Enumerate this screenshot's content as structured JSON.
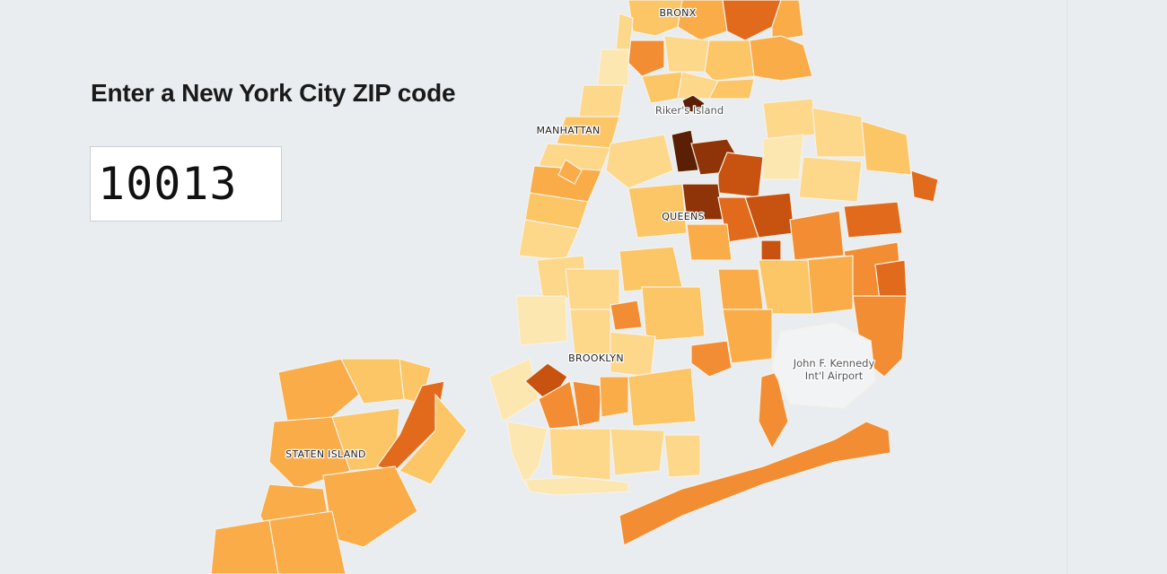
{
  "search": {
    "title": "Enter a New York City ZIP code",
    "value": "10013"
  },
  "map": {
    "labels": {
      "bronx": "BRONX",
      "manhattan": "MANHATTAN",
      "queens": "QUEENS",
      "brooklyn": "BROOKLYN",
      "staten_island": "STATEN ISLAND"
    },
    "places": {
      "rikers": "Riker's Island",
      "jfk_line1": "John F. Kennedy",
      "jfk_line2": "Int'l Airport"
    },
    "colors": {
      "background": "#e9edf0",
      "airport": "#f2f3f4",
      "scale": [
        "#fde7b0",
        "#fdd78a",
        "#fcc565",
        "#f9ac48",
        "#f28d33",
        "#e26a1c",
        "#c8520f",
        "#8f3308",
        "#5a1f05"
      ]
    }
  }
}
